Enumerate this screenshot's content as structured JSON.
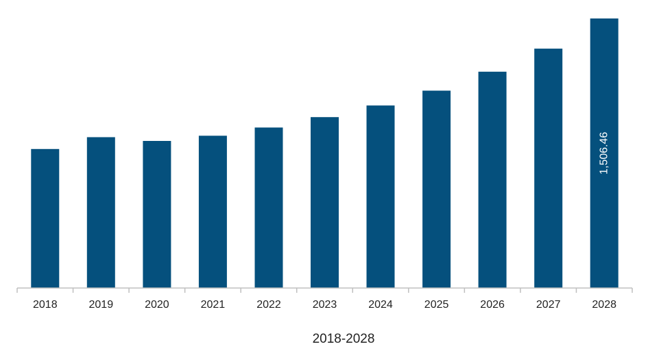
{
  "chart_data": {
    "type": "bar",
    "categories": [
      "2018",
      "2019",
      "2020",
      "2021",
      "2022",
      "2023",
      "2024",
      "2025",
      "2026",
      "2027",
      "2028"
    ],
    "values": [
      777,
      843,
      822,
      851,
      897,
      955,
      1020,
      1103,
      1209,
      1338,
      1506.46
    ],
    "data_labels": [
      "",
      "",
      "",
      "",
      "",
      "",
      "",
      "",
      "",
      "",
      "1,506.46"
    ],
    "xlabel": "2018-2028",
    "ylim": [
      0,
      1506.46
    ],
    "grid": false,
    "legend": "none",
    "bar_color": "#05507d",
    "axis_color": "#bfbfbf"
  }
}
